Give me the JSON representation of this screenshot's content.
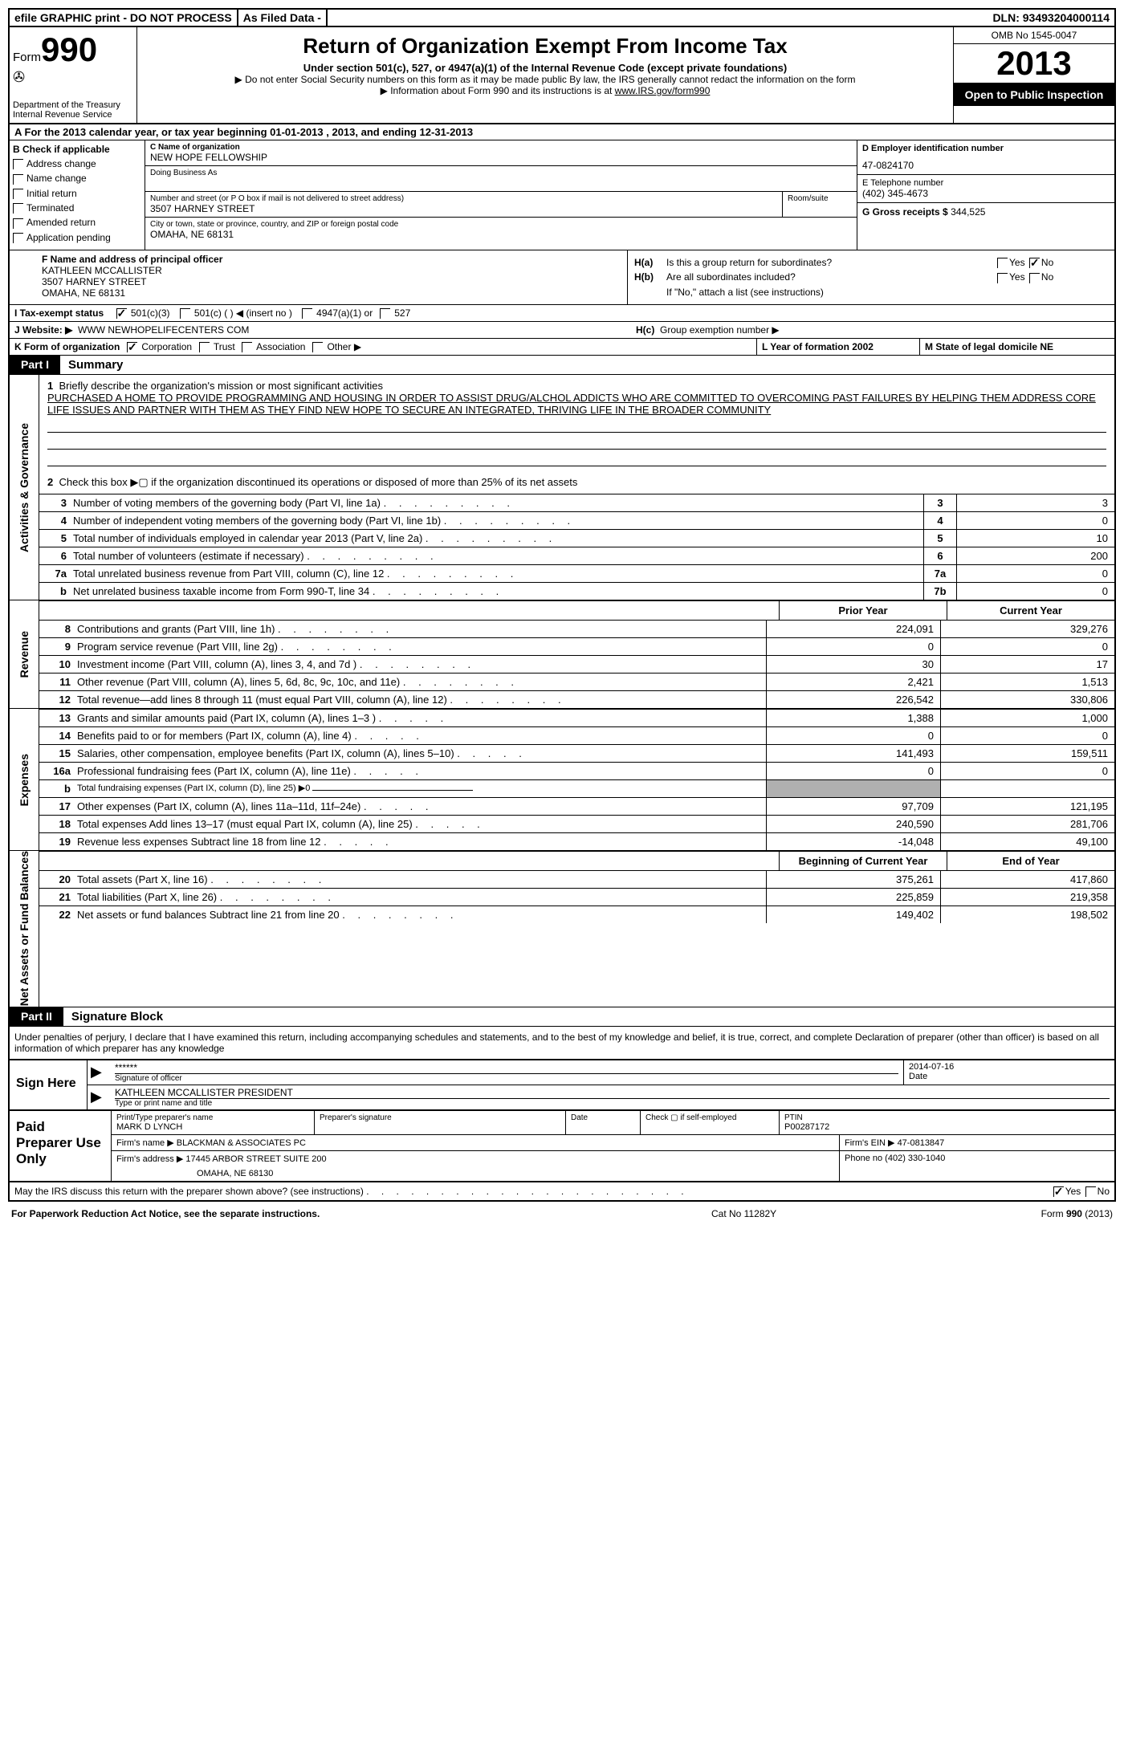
{
  "topbar": {
    "efile": "efile GRAPHIC print - DO NOT PROCESS",
    "asfiled": "As Filed Data -",
    "dln_label": "DLN:",
    "dln": "93493204000114"
  },
  "header": {
    "form": "Form",
    "num": "990",
    "dept": "Department of the Treasury",
    "irs": "Internal Revenue Service",
    "title": "Return of Organization Exempt From Income Tax",
    "sub1": "Under section 501(c), 527, or 4947(a)(1) of the Internal Revenue Code (except private foundations)",
    "sub2": "▶ Do not enter Social Security numbers on this form as it may be made public  By law, the IRS generally cannot redact the information on the form",
    "sub3": "▶ Information about Form 990 and its instructions is at ",
    "sub3link": "www.IRS.gov/form990",
    "omb": "OMB No  1545-0047",
    "year": "2013",
    "open": "Open to Public Inspection"
  },
  "rowA": "A  For the 2013 calendar year, or tax year beginning 01-01-2013       , 2013, and ending 12-31-2013",
  "colB": {
    "title": "B  Check if applicable",
    "opts": [
      "Address change",
      "Name change",
      "Initial return",
      "Terminated",
      "Amended return",
      "Application pending"
    ]
  },
  "colC": {
    "name_label": "C Name of organization",
    "name": "NEW HOPE FELLOWSHIP",
    "dba_label": "Doing Business As",
    "street_label": "Number and street (or P O  box if mail is not delivered to street address)",
    "room_label": "Room/suite",
    "street": "3507 HARNEY STREET",
    "city_label": "City or town, state or province, country, and ZIP or foreign postal code",
    "city": "OMAHA, NE  68131"
  },
  "colD": {
    "ein_label": "D Employer identification number",
    "ein": "47-0824170",
    "phone_label": "E Telephone number",
    "phone": "(402) 345-4673",
    "gross_label": "G Gross receipts $",
    "gross": "344,525"
  },
  "colF": {
    "label": "F  Name and address of principal officer",
    "name": "KATHLEEN MCCALLISTER",
    "street": "3507 HARNEY STREET",
    "city": "OMAHA, NE  68131"
  },
  "colH": {
    "ha_label": "H(a)",
    "ha_text": "Is this a group return for subordinates?",
    "hb_label": "H(b)",
    "hb_text": "Are all subordinates included?",
    "hb_note": "If \"No,\" attach a list  (see instructions)",
    "hc_label": "H(c)",
    "hc_text": "Group exemption number ▶",
    "yes": "Yes",
    "no": "No"
  },
  "rowI": {
    "label": "I   Tax-exempt status",
    "opt1": "501(c)(3)",
    "opt2": "501(c) (    ) ◀ (insert no )",
    "opt3": "4947(a)(1) or",
    "opt4": "527"
  },
  "rowJ": {
    "label": "J   Website: ▶",
    "value": "WWW NEWHOPELIFECENTERS COM"
  },
  "rowK": {
    "label": "K Form of organization",
    "corp": "Corporation",
    "trust": "Trust",
    "assoc": "Association",
    "other": "Other ▶",
    "l_label": "L Year of formation  2002",
    "m_label": "M State of legal domicile  NE"
  },
  "part1": {
    "label": "Part I",
    "title": "Summary"
  },
  "governance": {
    "vert": "Activities & Governance",
    "l1_num": "1",
    "l1": "Briefly describe the organization's mission or most significant activities",
    "l1_text": "PURCHASED A HOME TO PROVIDE PROGRAMMING AND HOUSING IN ORDER TO ASSIST DRUG/ALCHOL ADDICTS WHO ARE COMMITTED TO OVERCOMING PAST FAILURES BY HELPING THEM ADDRESS CORE LIFE ISSUES AND PARTNER WITH THEM AS THEY FIND NEW HOPE TO SECURE AN INTEGRATED, THRIVING LIFE IN THE BROADER COMMUNITY",
    "l2_num": "2",
    "l2": "Check this box ▶▢ if the organization discontinued its operations or disposed of more than 25% of its net assets",
    "rows": [
      {
        "n": "3",
        "d": "Number of voting members of the governing body (Part VI, line 1a)",
        "b": "3",
        "v": "3"
      },
      {
        "n": "4",
        "d": "Number of independent voting members of the governing body (Part VI, line 1b)",
        "b": "4",
        "v": "0"
      },
      {
        "n": "5",
        "d": "Total number of individuals employed in calendar year 2013 (Part V, line 2a)",
        "b": "5",
        "v": "10"
      },
      {
        "n": "6",
        "d": "Total number of volunteers (estimate if necessary)",
        "b": "6",
        "v": "200"
      },
      {
        "n": "7a",
        "d": "Total unrelated business revenue from Part VIII, column (C), line 12",
        "b": "7a",
        "v": "0"
      },
      {
        "n": "b",
        "d": "Net unrelated business taxable income from Form 990-T, line 34",
        "b": "7b",
        "v": "0"
      }
    ]
  },
  "revenue": {
    "vert": "Revenue",
    "prior": "Prior Year",
    "current": "Current Year",
    "rows": [
      {
        "n": "8",
        "d": "Contributions and grants (Part VIII, line 1h)",
        "v1": "224,091",
        "v2": "329,276"
      },
      {
        "n": "9",
        "d": "Program service revenue (Part VIII, line 2g)",
        "v1": "0",
        "v2": "0"
      },
      {
        "n": "10",
        "d": "Investment income (Part VIII, column (A), lines 3, 4, and 7d )",
        "v1": "30",
        "v2": "17"
      },
      {
        "n": "11",
        "d": "Other revenue (Part VIII, column (A), lines 5, 6d, 8c, 9c, 10c, and 11e)",
        "v1": "2,421",
        "v2": "1,513"
      },
      {
        "n": "12",
        "d": "Total revenue—add lines 8 through 11 (must equal Part VIII, column (A), line 12)",
        "v1": "226,542",
        "v2": "330,806"
      }
    ]
  },
  "expenses": {
    "vert": "Expenses",
    "rows": [
      {
        "n": "13",
        "d": "Grants and similar amounts paid (Part IX, column (A), lines 1–3 )",
        "v1": "1,388",
        "v2": "1,000"
      },
      {
        "n": "14",
        "d": "Benefits paid to or for members (Part IX, column (A), line 4)",
        "v1": "0",
        "v2": "0"
      },
      {
        "n": "15",
        "d": "Salaries, other compensation, employee benefits (Part IX, column (A), lines 5–10)",
        "v1": "141,493",
        "v2": "159,511"
      },
      {
        "n": "16a",
        "d": "Professional fundraising fees (Part IX, column (A), line 11e)",
        "v1": "0",
        "v2": "0"
      },
      {
        "n": "b",
        "d": "Total fundraising expenses (Part IX, column (D), line 25) ▶0",
        "v1": "",
        "v2": "",
        "shaded": true
      },
      {
        "n": "17",
        "d": "Other expenses (Part IX, column (A), lines 11a–11d, 11f–24e)",
        "v1": "97,709",
        "v2": "121,195"
      },
      {
        "n": "18",
        "d": "Total expenses  Add lines 13–17 (must equal Part IX, column (A), line 25)",
        "v1": "240,590",
        "v2": "281,706"
      },
      {
        "n": "19",
        "d": "Revenue less expenses  Subtract line 18 from line 12",
        "v1": "-14,048",
        "v2": "49,100"
      }
    ]
  },
  "netassets": {
    "vert": "Net Assets or Fund Balances",
    "begin": "Beginning of Current Year",
    "end": "End of Year",
    "rows": [
      {
        "n": "20",
        "d": "Total assets (Part X, line 16)",
        "v1": "375,261",
        "v2": "417,860"
      },
      {
        "n": "21",
        "d": "Total liabilities (Part X, line 26)",
        "v1": "225,859",
        "v2": "219,358"
      },
      {
        "n": "22",
        "d": "Net assets or fund balances  Subtract line 21 from line 20",
        "v1": "149,402",
        "v2": "198,502"
      }
    ]
  },
  "part2": {
    "label": "Part II",
    "title": "Signature Block"
  },
  "declaration": "Under penalties of perjury, I declare that I have examined this return, including accompanying schedules and statements, and to the best of my knowledge and belief, it is true, correct, and complete  Declaration of preparer (other than officer) is based on all information of which preparer has any knowledge",
  "sign": {
    "label": "Sign Here",
    "sig_val": "******",
    "sig_lbl": "Signature of officer",
    "date_val": "2014-07-16",
    "date_lbl": "Date",
    "name_val": "KATHLEEN MCCALLISTER  PRESIDENT",
    "name_lbl": "Type or print name and title"
  },
  "preparer": {
    "label": "Paid Preparer Use Only",
    "name_lbl": "Print/Type preparer's name",
    "name": "MARK D LYNCH",
    "sig_lbl": "Preparer's signature",
    "date_lbl": "Date",
    "self_lbl": "Check ▢ if self-employed",
    "ptin_lbl": "PTIN",
    "ptin": "P00287172",
    "firm_name_lbl": "Firm's name      ▶",
    "firm_name": "BLACKMAN & ASSOCIATES PC",
    "firm_ein_lbl": "Firm's EIN ▶",
    "firm_ein": "47-0813847",
    "firm_addr_lbl": "Firm's address ▶",
    "firm_addr1": "17445 ARBOR STREET SUITE 200",
    "firm_addr2": "OMAHA, NE  68130",
    "phone_lbl": "Phone no",
    "phone": "(402) 330-1040"
  },
  "discuss": {
    "text": "May the IRS discuss this return with the preparer shown above? (see instructions)",
    "yes": "Yes",
    "no": "No"
  },
  "footer": {
    "left": "For Paperwork Reduction Act Notice, see the separate instructions.",
    "mid": "Cat No  11282Y",
    "right": "Form 990 (2013)"
  }
}
